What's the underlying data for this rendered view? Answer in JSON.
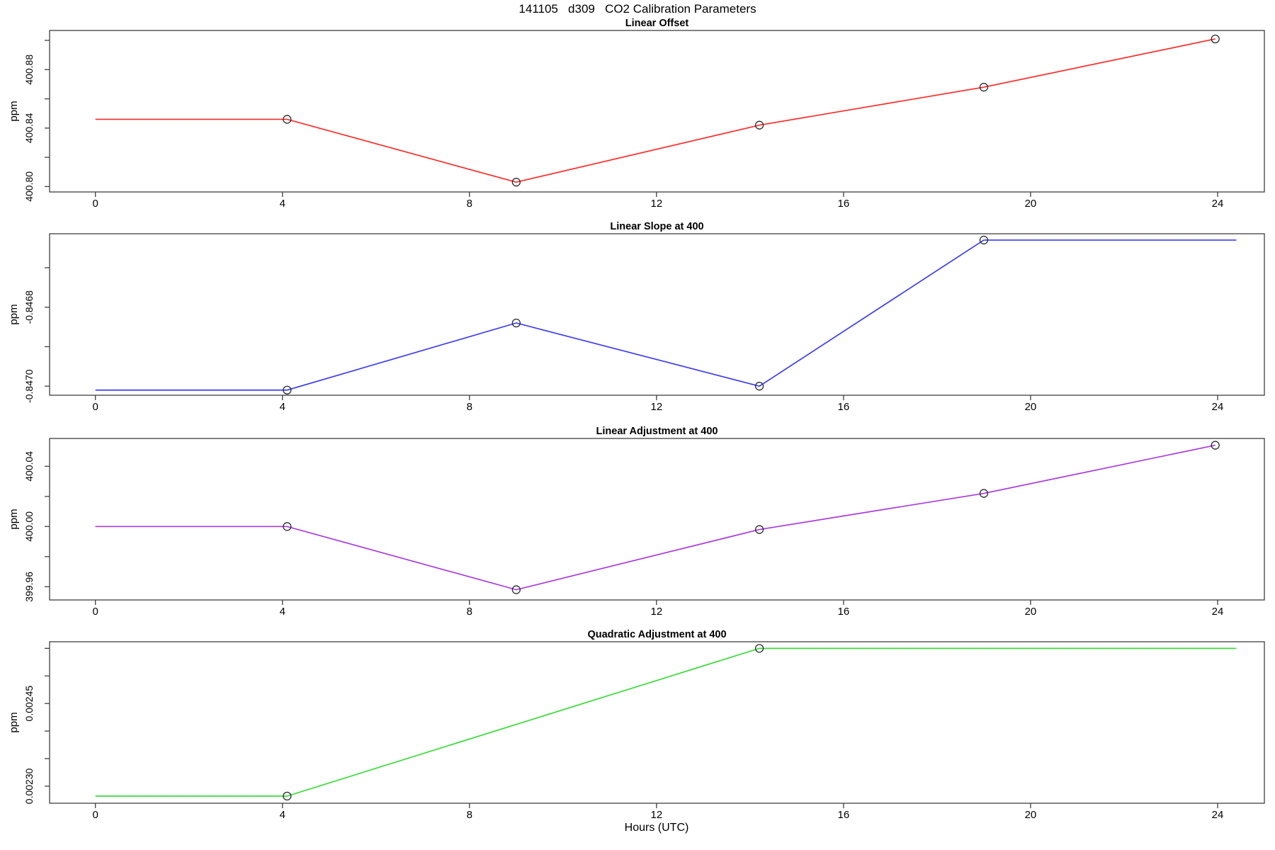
{
  "figure": {
    "title": "141105   d309   CO2 Calibration Parameters",
    "x_axis": {
      "label": "Hours (UTC)",
      "ticks": [
        "0",
        "4",
        "8",
        "12",
        "16",
        "20",
        "24"
      ],
      "tick_values": [
        0,
        4,
        8,
        12,
        16,
        20,
        24
      ],
      "xlim": [
        -0.98,
        25.0
      ]
    },
    "axis_color": "#3f3f3f",
    "marker_color": "#2b2b2b"
  },
  "chart_data": [
    {
      "id": "linear-offset",
      "type": "line",
      "title": "Linear Offset",
      "ylabel": "ppm",
      "color": "#ff2a2a",
      "legend": "none",
      "grid": false,
      "ylim": [
        400.7963,
        400.9068
      ],
      "x": [
        0,
        4.1,
        9.0,
        14.2,
        19.0,
        23.95
      ],
      "y": [
        400.846,
        400.846,
        400.803,
        400.842,
        400.868,
        400.901
      ],
      "markers": [
        false,
        true,
        true,
        true,
        true,
        true
      ],
      "y_ticks": [
        {
          "v": 400.8,
          "label": "400.80"
        },
        {
          "v": 400.82,
          "label": ""
        },
        {
          "v": 400.84,
          "label": "400.84"
        },
        {
          "v": 400.86,
          "label": ""
        },
        {
          "v": 400.88,
          "label": "400.88"
        },
        {
          "v": 400.9,
          "label": ""
        }
      ]
    },
    {
      "id": "linear-slope-at-400",
      "type": "line",
      "title": "Linear Slope at 400",
      "ylabel": "ppm",
      "color": "#3d3df5",
      "legend": "none",
      "grid": false,
      "ylim": [
        -0.847023,
        -0.846614
      ],
      "x": [
        0,
        4.1,
        9.0,
        14.2,
        19.0,
        24.4
      ],
      "y": [
        -0.84701,
        -0.84701,
        -0.84684,
        -0.847,
        -0.84663,
        -0.84663
      ],
      "markers": [
        false,
        true,
        true,
        true,
        true,
        false
      ],
      "y_ticks": [
        {
          "v": -0.847,
          "label": "-0.8470"
        },
        {
          "v": -0.8469,
          "label": ""
        },
        {
          "v": -0.8468,
          "label": "-0.8468"
        },
        {
          "v": -0.8467,
          "label": ""
        }
      ]
    },
    {
      "id": "linear-adjustment-at-400",
      "type": "line",
      "title": "Linear Adjustment at 400",
      "ylabel": "ppm",
      "color": "#a93be0",
      "legend": "none",
      "grid": false,
      "ylim": [
        399.9512,
        400.0585
      ],
      "x": [
        0,
        4.1,
        9.0,
        14.2,
        19.0,
        23.95
      ],
      "y": [
        400.0,
        400.0,
        399.958,
        399.998,
        400.022,
        400.054
      ],
      "markers": [
        false,
        true,
        true,
        true,
        true,
        true
      ],
      "y_ticks": [
        {
          "v": 399.96,
          "label": "399.96"
        },
        {
          "v": 399.98,
          "label": ""
        },
        {
          "v": 400.0,
          "label": "400.00"
        },
        {
          "v": 400.02,
          "label": ""
        },
        {
          "v": 400.04,
          "label": "400.04"
        }
      ]
    },
    {
      "id": "quadratic-adjustment-at-400",
      "type": "line",
      "title": "Quadratic Adjustment at 400",
      "ylabel": "ppm",
      "color": "#3bdc3b",
      "legend": "none",
      "grid": false,
      "ylim": [
        0.002269,
        0.002562
      ],
      "x": [
        0,
        4.1,
        14.2,
        24.4
      ],
      "y": [
        0.002282,
        0.002282,
        0.00255,
        0.00255
      ],
      "markers": [
        false,
        true,
        true,
        false
      ],
      "y_ticks": [
        {
          "v": 0.0023,
          "label": "0.00230"
        },
        {
          "v": 0.00235,
          "label": ""
        },
        {
          "v": 0.0024,
          "label": ""
        },
        {
          "v": 0.00245,
          "label": "0.00245"
        },
        {
          "v": 0.0025,
          "label": ""
        },
        {
          "v": 0.00255,
          "label": ""
        }
      ]
    }
  ]
}
